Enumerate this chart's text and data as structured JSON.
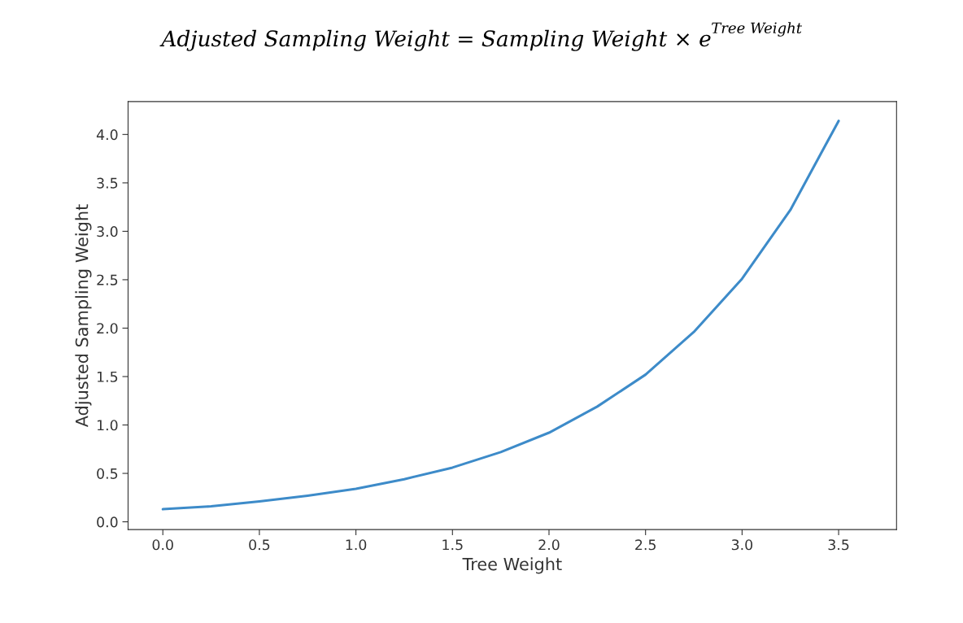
{
  "chart_data": {
    "type": "line",
    "title": "Adjusted Sampling Weight = Sampling Weight × e$^{Tree Weight}$",
    "xlabel": "Tree Weight",
    "ylabel": "Adjusted Sampling Weight",
    "x": [
      0,
      0.25,
      0.5,
      0.75,
      1.0,
      1.25,
      1.5,
      1.75,
      2.0,
      2.25,
      2.5,
      2.75,
      3.0,
      3.25,
      3.5
    ],
    "series": [
      {
        "color": "#3d8bc9",
        "values": [
          0.13,
          0.16,
          0.21,
          0.27,
          0.34,
          0.44,
          0.56,
          0.72,
          0.92,
          1.19,
          1.52,
          1.96,
          2.51,
          3.22,
          4.14
        ]
      }
    ],
    "xlim": [
      -0.18,
      3.8
    ],
    "ylim": [
      -0.08,
      4.34
    ],
    "xticks": [
      {
        "value": 0,
        "label": "0.0"
      },
      0.5,
      {
        "value": 1,
        "label": "1.0"
      },
      1.5,
      {
        "value": 2,
        "label": "2.0"
      },
      2.5,
      {
        "value": 3,
        "label": "3.0"
      },
      3.5
    ],
    "yticks": [
      {
        "value": 0,
        "label": "0.0"
      },
      0.5,
      {
        "value": 1,
        "label": "1.0"
      },
      1.5,
      {
        "value": 2,
        "label": "2.0"
      },
      2.5,
      {
        "value": 3,
        "label": "3.0"
      },
      3.5,
      {
        "value": 4,
        "label": "4.0"
      }
    ],
    "grid": false,
    "marker": "none",
    "line_style": "solid"
  }
}
